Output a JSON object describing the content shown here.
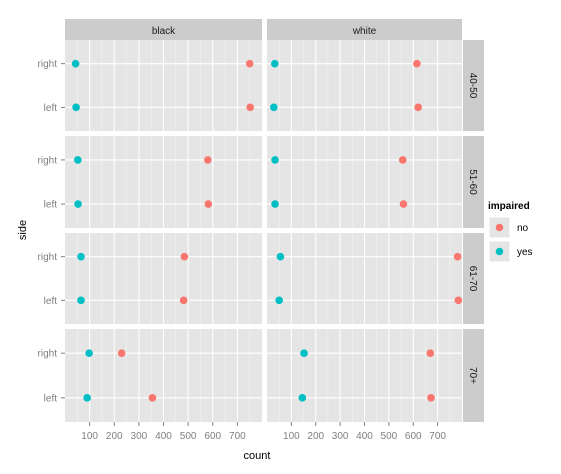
{
  "chart_data": {
    "type": "scatter",
    "xlabel": "count",
    "ylabel": "side",
    "xlim": [
      0,
      800
    ],
    "x_ticks": [
      100,
      200,
      300,
      400,
      500,
      600,
      700
    ],
    "categories": [
      "right",
      "left"
    ],
    "columns": [
      "black",
      "white"
    ],
    "rows": [
      "40-50",
      "51-60",
      "61-70",
      "70+"
    ],
    "legend": {
      "title": "impaired",
      "position": "right",
      "entries": [
        "no",
        "yes"
      ]
    },
    "colors": {
      "no": "#F8766D",
      "yes": "#00BFC4"
    },
    "grid": true,
    "panels": [
      {
        "column": "black",
        "row": "40-50",
        "no": {
          "right": 750,
          "left": 752
        },
        "yes": {
          "right": 43,
          "left": 45
        }
      },
      {
        "column": "white",
        "row": "40-50",
        "no": {
          "right": 615,
          "left": 620
        },
        "yes": {
          "right": 32,
          "left": 28
        }
      },
      {
        "column": "black",
        "row": "51-60",
        "no": {
          "right": 580,
          "left": 582
        },
        "yes": {
          "right": 52,
          "left": 53
        }
      },
      {
        "column": "white",
        "row": "51-60",
        "no": {
          "right": 557,
          "left": 560
        },
        "yes": {
          "right": 33,
          "left": 33
        }
      },
      {
        "column": "black",
        "row": "61-70",
        "no": {
          "right": 485,
          "left": 482
        },
        "yes": {
          "right": 65,
          "left": 65
        }
      },
      {
        "column": "white",
        "row": "61-70",
        "no": {
          "right": 782,
          "left": 785
        },
        "yes": {
          "right": 55,
          "left": 50
        }
      },
      {
        "column": "black",
        "row": "70+",
        "no": {
          "right": 230,
          "left": 355
        },
        "yes": {
          "right": 98,
          "left": 90
        }
      },
      {
        "column": "white",
        "row": "70+",
        "no": {
          "right": 670,
          "left": 673
        },
        "yes": {
          "right": 152,
          "left": 145
        }
      }
    ]
  }
}
